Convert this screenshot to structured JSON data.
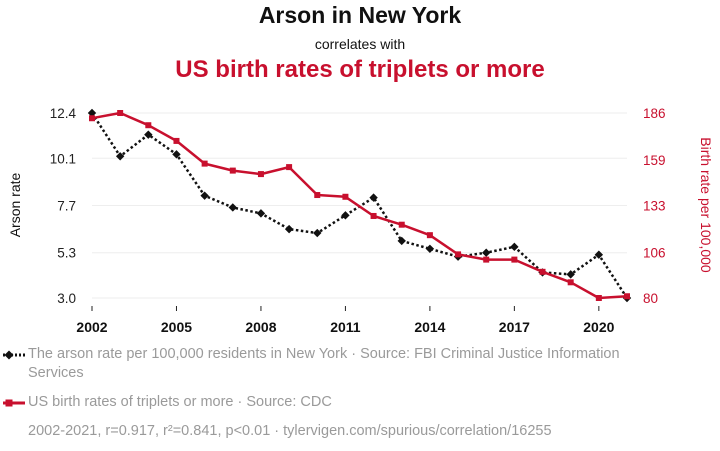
{
  "chart_data": {
    "type": "line",
    "title": "Arson in New York",
    "subtitle": "correlates with",
    "title2": "US birth rates of triplets or more",
    "x": [
      2002,
      2003,
      2004,
      2005,
      2006,
      2007,
      2008,
      2009,
      2010,
      2011,
      2012,
      2013,
      2014,
      2015,
      2016,
      2017,
      2018,
      2019,
      2020,
      2021
    ],
    "x_ticks": [
      "2002",
      "2005",
      "2008",
      "2011",
      "2014",
      "2017",
      "2020"
    ],
    "y_left": {
      "label": "Arson rate",
      "ticks": [
        "12.4",
        "10.1",
        "7.7",
        "5.3",
        "3.0"
      ],
      "lim": [
        3.0,
        12.4
      ]
    },
    "y_right": {
      "label": "Birth rate per 100,000",
      "ticks": [
        "186",
        "159",
        "133",
        "106",
        "80"
      ],
      "lim": [
        80,
        186
      ]
    },
    "grid": true,
    "series": [
      {
        "name": "The arson rate per 100,000 residents in New York · Source: FBI Criminal Justice Information Services",
        "axis": "left",
        "color": "#111111",
        "style": "dotted",
        "marker": "diamond",
        "values": [
          12.4,
          10.2,
          11.3,
          10.3,
          8.2,
          7.6,
          7.3,
          6.5,
          6.3,
          7.2,
          8.1,
          5.9,
          5.5,
          5.1,
          5.3,
          5.6,
          4.3,
          4.2,
          5.2,
          3.0
        ]
      },
      {
        "name": "US birth rates of triplets or more · Source: CDC",
        "axis": "right",
        "color": "#c8102e",
        "style": "solid",
        "marker": "square",
        "values": [
          183,
          186,
          179,
          170,
          157,
          153,
          151,
          155,
          139,
          138,
          127,
          122,
          116,
          105,
          102,
          102,
          95,
          89,
          80,
          81
        ]
      }
    ],
    "legend_placement": "bottom-left",
    "footer": "2002-2021, r=0.917, r²=0.841, p<0.01 · tylervigen.com/spurious/correlation/16255"
  }
}
